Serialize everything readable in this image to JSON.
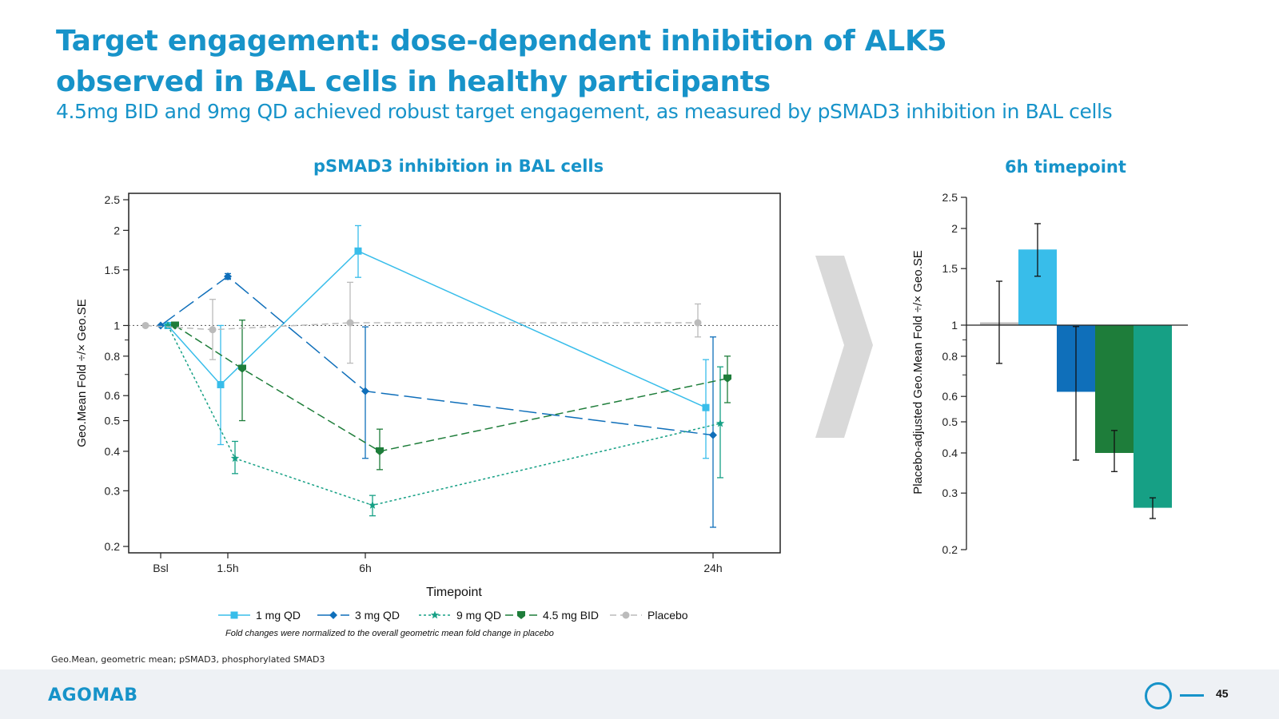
{
  "slide": {
    "title_line1": "Target engagement: dose-dependent inhibition of ALK5",
    "title_line2": "observed in BAL cells in healthy participants",
    "subtitle": "4.5mg BID and 9mg QD achieved robust target engagement, as measured by pSMAD3 inhibition in BAL cells",
    "footnote": "Geo.Mean, geometric mean; pSMAD3, phosphorylated SMAD3",
    "logo": "AGOMAB",
    "page_number": "45",
    "colors": {
      "accent": "#1793c9",
      "1mg": "#38bdea",
      "3mg": "#0f6fba",
      "9mg": "#16a085",
      "4.5mg": "#1e7d3a",
      "placebo": "#bbbbbb"
    }
  },
  "chart_data": [
    {
      "type": "line",
      "title": "pSMAD3 inhibition in BAL cells",
      "xlabel": "Timepoint",
      "ylabel": "Geo.Mean Fold ÷/× Geo.SE",
      "y_scale": "log",
      "ylim": [
        0.2,
        2.5
      ],
      "y_ticks": [
        "0.2",
        "0.3",
        "0.4",
        "0.5",
        "0.6",
        "0.8",
        "1",
        "1.5",
        "2",
        "2.5"
      ],
      "categories": [
        "Bsl",
        "1.5h",
        "6h",
        "24h"
      ],
      "reference_line": 1,
      "note": "Fold changes were normalized to the overall geometric mean fold change in placebo",
      "legend_position": "bottom",
      "series": [
        {
          "name": "1 mg QD",
          "marker": "square",
          "dash": "solid",
          "values": [
            1.0,
            0.65,
            1.72,
            0.55
          ],
          "err_low": [
            1.0,
            0.42,
            1.42,
            0.38
          ],
          "err_high": [
            1.0,
            1.0,
            2.07,
            0.78
          ]
        },
        {
          "name": "3 mg QD",
          "marker": "diamond",
          "dash": "longdash",
          "values": [
            1.0,
            1.43,
            0.62,
            0.45
          ],
          "err_low": [
            1.0,
            1.4,
            0.38,
            0.23
          ],
          "err_high": [
            1.0,
            1.46,
            0.99,
            0.92
          ]
        },
        {
          "name": "9 mg QD",
          "marker": "star",
          "dash": "dotted",
          "values": [
            1.0,
            0.38,
            0.27,
            0.49
          ],
          "err_low": [
            1.0,
            0.34,
            0.25,
            0.33
          ],
          "err_high": [
            1.0,
            0.43,
            0.29,
            0.74
          ]
        },
        {
          "name": "4.5 mg BID",
          "marker": "shield",
          "dash": "dashed",
          "values": [
            1.0,
            0.73,
            0.4,
            0.68
          ],
          "err_low": [
            1.0,
            0.5,
            0.35,
            0.57
          ],
          "err_high": [
            1.0,
            1.04,
            0.47,
            0.8
          ]
        },
        {
          "name": "Placebo",
          "marker": "circle",
          "dash": "grey-dashed",
          "values": [
            1.0,
            0.97,
            1.02,
            1.02
          ],
          "err_low": [
            1.0,
            0.78,
            0.76,
            0.92
          ],
          "err_high": [
            1.0,
            1.21,
            1.37,
            1.17
          ]
        }
      ]
    },
    {
      "type": "bar",
      "title": "6h timepoint",
      "ylabel": "Placebo-adjusted Geo.Mean Fold ÷/× Geo.SE",
      "y_scale": "log",
      "ylim": [
        0.2,
        2.5
      ],
      "y_ticks": [
        "0.2",
        "0.3",
        "0.4",
        "0.5",
        "0.6",
        "0.8",
        "1",
        "1.5",
        "2",
        "2.5"
      ],
      "baseline": 1,
      "categories": [
        "Placebo",
        "1 mg QD",
        "3 mg QD",
        "4.5 mg BID",
        "9 mg QD"
      ],
      "values": [
        1.02,
        1.72,
        0.62,
        0.4,
        0.27
      ],
      "err_low": [
        0.76,
        1.42,
        0.38,
        0.35,
        0.25
      ],
      "err_high": [
        1.37,
        2.07,
        0.99,
        0.47,
        0.29
      ]
    }
  ]
}
